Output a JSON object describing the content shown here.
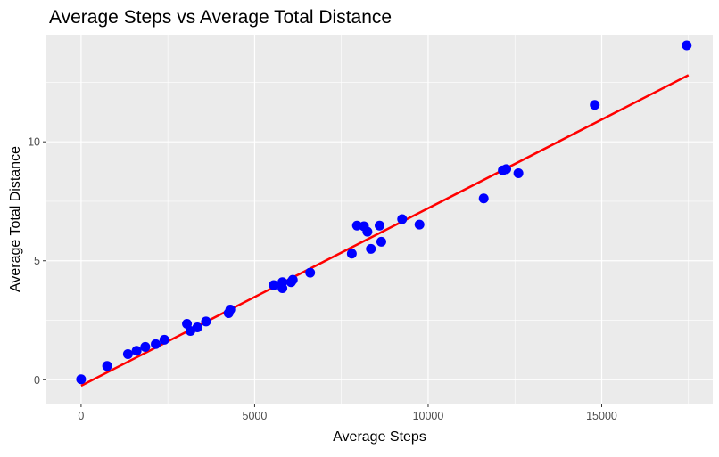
{
  "chart_data": {
    "type": "scatter",
    "title": "Average Steps vs Average Total Distance",
    "xlabel": "Average Steps",
    "ylabel": "Average Total Distance",
    "xlim": [
      -1000,
      18200
    ],
    "ylim": [
      -1.0,
      14.5
    ],
    "x_ticks": [
      0,
      5000,
      10000,
      15000
    ],
    "x_tick_labels": [
      "0",
      "5000",
      "10000",
      "15000"
    ],
    "y_ticks": [
      0,
      5,
      10
    ],
    "y_tick_labels": [
      "0",
      "5",
      "10"
    ],
    "grid": true,
    "legend": "none",
    "point_color": "#0000ff",
    "fit_line_color": "#ff0000",
    "panel_background": "#ebebeb",
    "grid_color": "#ffffff",
    "fit_line": {
      "x": [
        0,
        17500
      ],
      "y": [
        -0.25,
        12.8
      ]
    },
    "points": [
      {
        "x": 0,
        "y": 0.02
      },
      {
        "x": 750,
        "y": 0.58
      },
      {
        "x": 1350,
        "y": 1.08
      },
      {
        "x": 1600,
        "y": 1.22
      },
      {
        "x": 1850,
        "y": 1.38
      },
      {
        "x": 2150,
        "y": 1.5
      },
      {
        "x": 2400,
        "y": 1.68
      },
      {
        "x": 3050,
        "y": 2.35
      },
      {
        "x": 3150,
        "y": 2.05
      },
      {
        "x": 3350,
        "y": 2.2
      },
      {
        "x": 3600,
        "y": 2.45
      },
      {
        "x": 4250,
        "y": 2.8
      },
      {
        "x": 4300,
        "y": 2.95
      },
      {
        "x": 5550,
        "y": 3.98
      },
      {
        "x": 5800,
        "y": 4.1
      },
      {
        "x": 5800,
        "y": 3.85
      },
      {
        "x": 6050,
        "y": 4.1
      },
      {
        "x": 6100,
        "y": 4.2
      },
      {
        "x": 6600,
        "y": 4.5
      },
      {
        "x": 7800,
        "y": 5.3
      },
      {
        "x": 7950,
        "y": 6.48
      },
      {
        "x": 8150,
        "y": 6.45
      },
      {
        "x": 8250,
        "y": 6.22
      },
      {
        "x": 8350,
        "y": 5.5
      },
      {
        "x": 8600,
        "y": 6.48
      },
      {
        "x": 8650,
        "y": 5.8
      },
      {
        "x": 9250,
        "y": 6.75
      },
      {
        "x": 9750,
        "y": 6.52
      },
      {
        "x": 11600,
        "y": 7.62
      },
      {
        "x": 12150,
        "y": 8.8
      },
      {
        "x": 12250,
        "y": 8.85
      },
      {
        "x": 12600,
        "y": 8.68
      },
      {
        "x": 14800,
        "y": 11.55
      },
      {
        "x": 17450,
        "y": 14.05
      }
    ]
  }
}
